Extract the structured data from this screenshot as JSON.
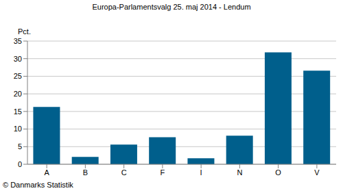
{
  "chart_data": {
    "type": "bar",
    "title": "Europa-Parlamentsvalg 25. maj 2014 - Lendum",
    "y_label": "Pct.",
    "annotations": [
      "© Danmarks Statistik"
    ],
    "categories": [
      "A",
      "B",
      "C",
      "F",
      "I",
      "N",
      "O",
      "V"
    ],
    "values": [
      16.3,
      2.1,
      5.6,
      7.7,
      1.7,
      8.1,
      31.8,
      26.6
    ],
    "color": "#005f8c",
    "ylim": [
      0,
      35
    ],
    "yticks": [
      0,
      5,
      10,
      15,
      20,
      25,
      30,
      35
    ],
    "grid": true
  }
}
